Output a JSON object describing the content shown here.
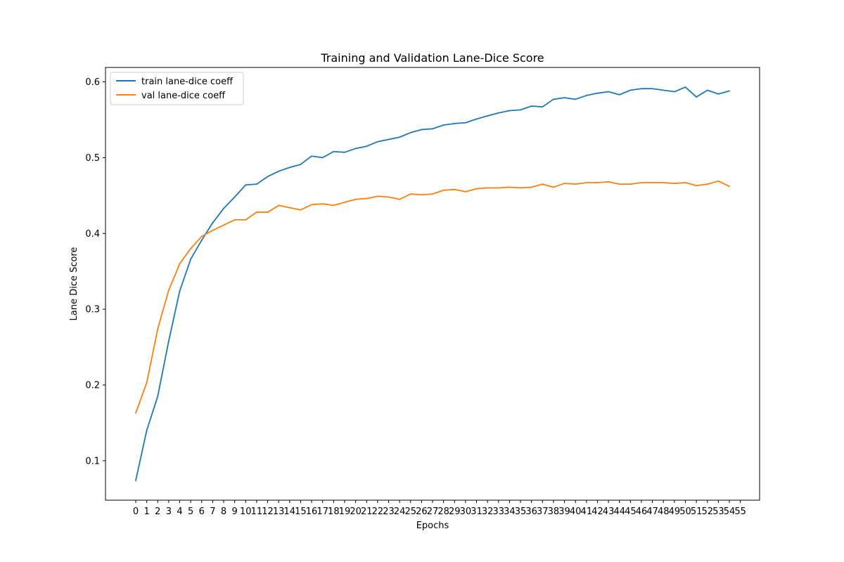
{
  "chart_data": {
    "type": "line",
    "title": "Training and Validation Lane-Dice Score",
    "xlabel": "Epochs",
    "ylabel": "Lane Dice Score",
    "x": [
      0,
      1,
      2,
      3,
      4,
      5,
      6,
      7,
      8,
      9,
      10,
      11,
      12,
      13,
      14,
      15,
      16,
      17,
      18,
      19,
      20,
      21,
      22,
      23,
      24,
      25,
      26,
      27,
      28,
      29,
      30,
      31,
      32,
      33,
      34,
      35,
      36,
      37,
      38,
      39,
      40,
      41,
      42,
      43,
      44,
      45,
      46,
      47,
      48,
      49,
      50,
      51,
      52,
      53,
      54
    ],
    "xticks": [
      "0",
      "1",
      "2",
      "3",
      "4",
      "5",
      "6",
      "7",
      "8",
      "9",
      "10",
      "11",
      "12",
      "13",
      "14",
      "15",
      "16",
      "17",
      "18",
      "19",
      "20",
      "21",
      "22",
      "23",
      "24",
      "25",
      "26",
      "27",
      "28",
      "29",
      "30",
      "31",
      "32",
      "33",
      "34",
      "35",
      "36",
      "37",
      "38",
      "39",
      "40",
      "41",
      "42",
      "43",
      "44",
      "45",
      "46",
      "47",
      "48",
      "49",
      "50",
      "51",
      "52",
      "53",
      "54",
      "55"
    ],
    "xlim": [
      -2.75,
      56.75
    ],
    "ylim": [
      0.048,
      0.619
    ],
    "yticks": [
      "0.1",
      "0.2",
      "0.3",
      "0.4",
      "0.5",
      "0.6"
    ],
    "ytick_values": [
      0.1,
      0.2,
      0.3,
      0.4,
      0.5,
      0.6
    ],
    "grid": false,
    "legend_position": "top-left",
    "series": [
      {
        "name": "train lane-dice coeff",
        "color": "#1f77b4",
        "values": [
          0.074,
          0.14,
          0.185,
          0.258,
          0.324,
          0.366,
          0.391,
          0.414,
          0.433,
          0.448,
          0.464,
          0.465,
          0.475,
          0.482,
          0.487,
          0.491,
          0.502,
          0.5,
          0.508,
          0.507,
          0.512,
          0.515,
          0.521,
          0.524,
          0.527,
          0.533,
          0.537,
          0.538,
          0.543,
          0.545,
          0.546,
          0.551,
          0.555,
          0.559,
          0.562,
          0.563,
          0.568,
          0.567,
          0.577,
          0.579,
          0.577,
          0.582,
          0.585,
          0.587,
          0.583,
          0.589,
          0.591,
          0.591,
          0.589,
          0.587,
          0.593,
          0.58,
          0.589,
          0.584,
          0.588
        ]
      },
      {
        "name": "val lane-dice coeff",
        "color": "#ff7f0e",
        "values": [
          0.163,
          0.203,
          0.274,
          0.325,
          0.36,
          0.38,
          0.396,
          0.404,
          0.411,
          0.418,
          0.418,
          0.428,
          0.428,
          0.437,
          0.434,
          0.431,
          0.438,
          0.439,
          0.437,
          0.441,
          0.445,
          0.446,
          0.449,
          0.448,
          0.445,
          0.452,
          0.451,
          0.452,
          0.457,
          0.458,
          0.455,
          0.459,
          0.46,
          0.46,
          0.461,
          0.46,
          0.461,
          0.465,
          0.461,
          0.466,
          0.465,
          0.467,
          0.467,
          0.468,
          0.465,
          0.465,
          0.467,
          0.467,
          0.467,
          0.466,
          0.467,
          0.463,
          0.465,
          0.469,
          0.462
        ]
      }
    ]
  }
}
